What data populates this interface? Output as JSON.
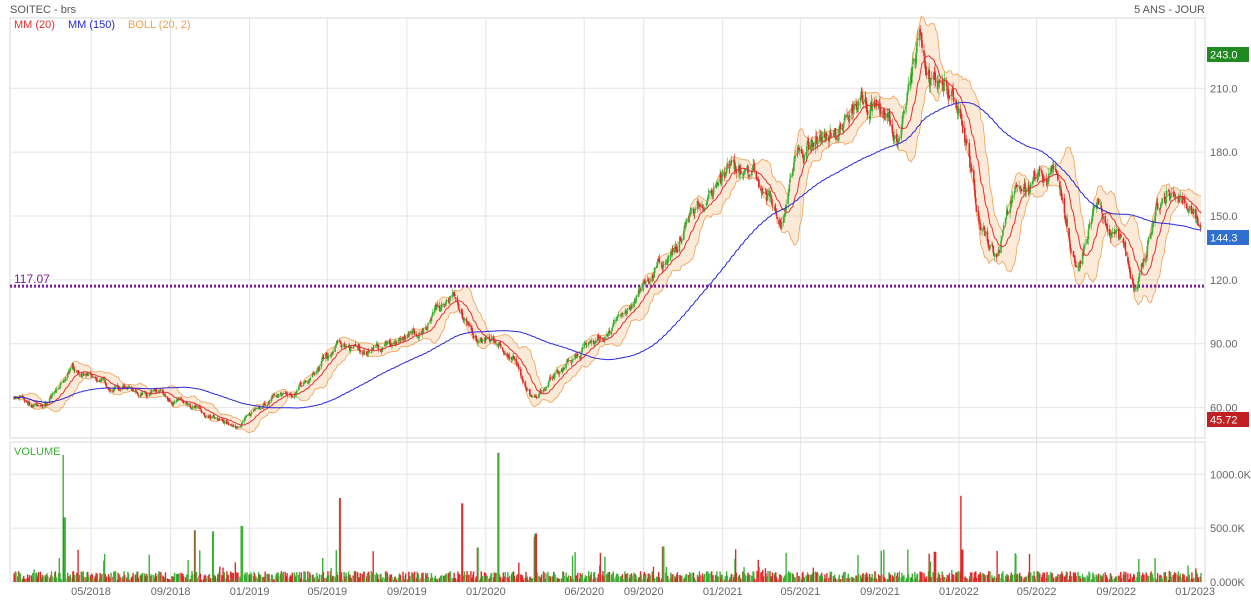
{
  "header": {
    "title": "SOITEC - brs",
    "period": "5 ANS - JOUR"
  },
  "legend": [
    {
      "label": "MM (20)",
      "color": "#e03030"
    },
    {
      "label": "MM (150)",
      "color": "#2828d8"
    },
    {
      "label": "BOLL (20, 2)",
      "color": "#f0a050"
    }
  ],
  "price_labels": {
    "high": "243.0",
    "last": "144.3",
    "low": "45.72",
    "support": "117.07"
  },
  "volume_label": "VOLUME",
  "colors": {
    "up": "#3cb034",
    "down": "#e02828",
    "ma20": "#e03030",
    "ma150": "#2828d8",
    "boll": "#f0a050",
    "support": "#7a1fa0",
    "high_badge": "#1f8a1f",
    "last_badge": "#2f6fd0",
    "low_badge": "#c02020",
    "grid": "#e4e4e4",
    "text": "#666666"
  },
  "chart_data": [
    {
      "type": "candlestick",
      "title": "SOITEC - brs",
      "ylim": [
        45.72,
        243.0
      ],
      "y_ticks": [
        60,
        90,
        120,
        150,
        180,
        210
      ],
      "y_tick_labels": [
        "60.00",
        "90.00",
        "120.0",
        "150.0",
        "180.0",
        "210.0"
      ],
      "x_tick_labels": [
        "05/2018",
        "09/2018",
        "01/2019",
        "05/2019",
        "09/2019",
        "01/2020",
        "06/2020",
        "09/2020",
        "01/2021",
        "05/2021",
        "09/2021",
        "01/2022",
        "05/2022",
        "09/2022",
        "01/2023"
      ],
      "horizontal_line": 117.07,
      "period_high": 243.0,
      "period_low": 45.72,
      "last": 144.3,
      "price_path": [
        [
          "2018-01-02",
          64
        ],
        [
          "2018-02-15",
          60
        ],
        [
          "2018-04-01",
          80
        ],
        [
          "2018-05-15",
          72
        ],
        [
          "2018-07-01",
          68
        ],
        [
          "2018-09-01",
          64
        ],
        [
          "2018-10-15",
          58
        ],
        [
          "2018-12-15",
          52
        ],
        [
          "2019-02-01",
          64
        ],
        [
          "2019-04-01",
          72
        ],
        [
          "2019-05-15",
          90
        ],
        [
          "2019-07-01",
          88
        ],
        [
          "2019-09-01",
          92
        ],
        [
          "2019-11-15",
          110
        ],
        [
          "2019-12-15",
          96
        ],
        [
          "2020-01-15",
          92
        ],
        [
          "2020-02-15",
          82
        ],
        [
          "2020-03-15",
          62
        ],
        [
          "2020-04-15",
          75
        ],
        [
          "2020-06-01",
          88
        ],
        [
          "2020-08-01",
          102
        ],
        [
          "2020-09-01",
          118
        ],
        [
          "2020-10-01",
          128
        ],
        [
          "2020-11-15",
          150
        ],
        [
          "2021-01-01",
          172
        ],
        [
          "2021-02-15",
          168
        ],
        [
          "2021-03-15",
          160
        ],
        [
          "2021-04-01",
          150
        ],
        [
          "2021-05-01",
          180
        ],
        [
          "2021-06-15",
          185
        ],
        [
          "2021-08-01",
          205
        ],
        [
          "2021-09-01",
          200
        ],
        [
          "2021-10-01",
          185
        ],
        [
          "2021-11-01",
          230
        ],
        [
          "2021-12-01",
          215
        ],
        [
          "2022-01-01",
          200
        ],
        [
          "2022-02-01",
          148
        ],
        [
          "2022-03-01",
          130
        ],
        [
          "2022-04-01",
          170
        ],
        [
          "2022-05-01",
          165
        ],
        [
          "2022-06-01",
          172
        ],
        [
          "2022-07-01",
          125
        ],
        [
          "2022-08-01",
          155
        ],
        [
          "2022-09-01",
          140
        ],
        [
          "2022-10-01",
          118
        ],
        [
          "2022-11-01",
          155
        ],
        [
          "2022-12-01",
          160
        ],
        [
          "2023-01-10",
          144.3
        ]
      ],
      "indicators": {
        "ma20_window": 20,
        "ma150_window": 150,
        "bollinger": {
          "window": 20,
          "std": 2
        }
      }
    },
    {
      "type": "bar",
      "title": "VOLUME",
      "ylim": [
        0,
        1300
      ],
      "y_ticks": [
        0,
        500,
        1000
      ],
      "y_tick_labels": [
        "0.000K",
        "500.0K",
        "1000.0K"
      ],
      "typical_volume_k": 60,
      "spikes": [
        [
          "2018-03-20",
          1180
        ],
        [
          "2018-03-21",
          600
        ],
        [
          "2018-10-08",
          480
        ],
        [
          "2018-11-05",
          470
        ],
        [
          "2018-12-20",
          520
        ],
        [
          "2019-05-20",
          780
        ],
        [
          "2019-11-25",
          730
        ],
        [
          "2019-12-20",
          320
        ],
        [
          "2020-01-20",
          1200
        ],
        [
          "2020-03-16",
          420
        ],
        [
          "2020-03-18",
          450
        ],
        [
          "2020-10-01",
          330
        ],
        [
          "2021-11-25",
          280
        ],
        [
          "2022-01-05",
          800
        ],
        [
          "2022-01-06",
          300
        ]
      ]
    }
  ]
}
